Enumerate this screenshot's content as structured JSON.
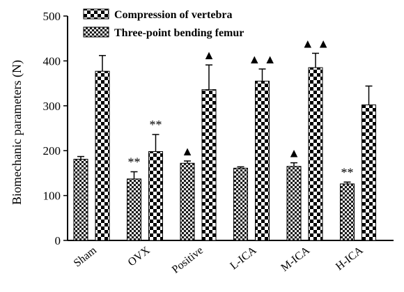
{
  "chart_data": {
    "type": "bar",
    "ylabel": "Biomechanic  parameters (N)",
    "xlabel": "",
    "ylim": [
      0,
      500
    ],
    "yticks": [
      0,
      100,
      200,
      300,
      400,
      500
    ],
    "categories": [
      "Sham",
      "OVX",
      "Positive",
      "L-ICA",
      "M-ICA",
      "H-ICA"
    ],
    "legend_position": "top-left",
    "series": [
      {
        "name": "Compression of vertebra",
        "pattern": "checkerboard-large",
        "values": [
          181,
          137,
          172,
          161,
          165,
          126
        ],
        "errors": [
          6,
          16,
          5,
          3,
          8,
          4
        ],
        "annotations": [
          "",
          "**",
          "▲",
          "",
          "▲",
          "**"
        ]
      },
      {
        "name": "Three-point bending femur",
        "pattern": "checkerboard-small",
        "values": [
          377,
          198,
          336,
          355,
          385,
          302
        ],
        "errors": [
          35,
          38,
          55,
          27,
          32,
          42
        ],
        "annotations": [
          "",
          "**",
          "▲",
          "▲ ▲",
          "▲ ▲",
          ""
        ]
      }
    ]
  }
}
